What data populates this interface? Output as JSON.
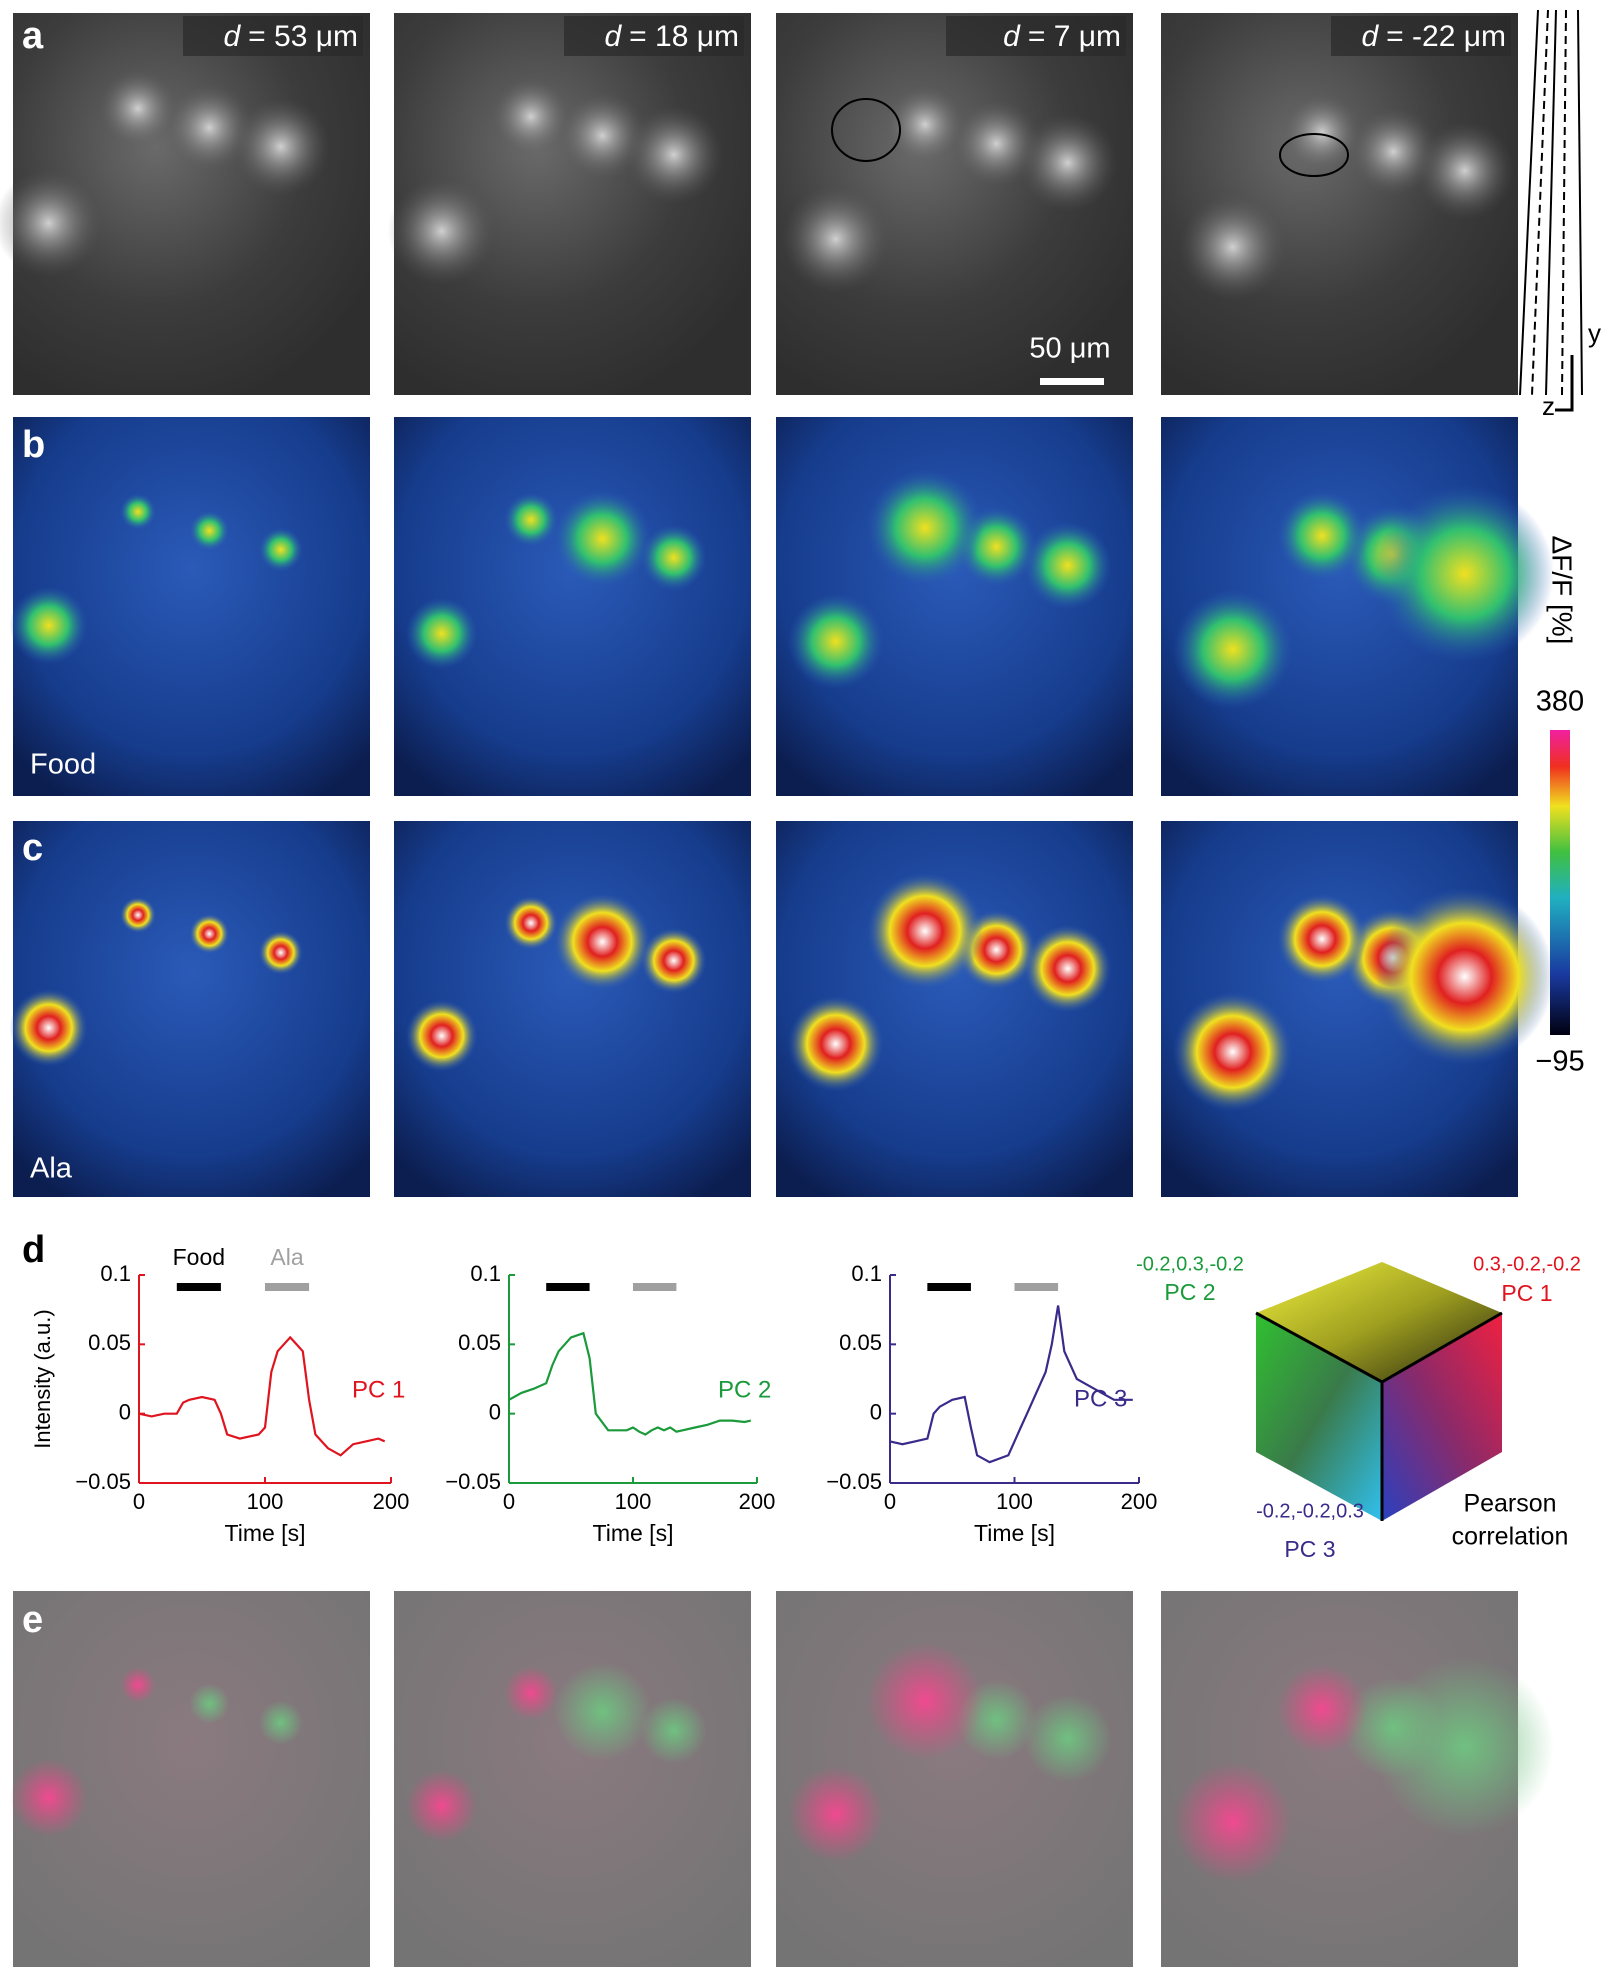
{
  "panel_letters": [
    "a",
    "b",
    "c",
    "d",
    "e"
  ],
  "depth_labels": [
    {
      "symbol": "d",
      "text": "= 53 μm"
    },
    {
      "symbol": "d",
      "text": "= 18 μm"
    },
    {
      "symbol": "d",
      "text": "= 7 μm"
    },
    {
      "symbol": "d",
      "text": "= -22 μm"
    }
  ],
  "scale_bar": "50 μm",
  "stack_axes": {
    "y": "y",
    "z": "z"
  },
  "row_labels": {
    "b": "Food",
    "c": "Ala"
  },
  "colorbar": {
    "label": "ΔF/F [%]",
    "max": 380,
    "min": {
      "value": -95,
      "label": "−95"
    }
  },
  "chart_data": [
    {
      "type": "line",
      "ylabel": "Intensity (a.u.)",
      "xlabel": "Time [s]",
      "xlim": [
        0,
        200
      ],
      "xticks": [
        0,
        100,
        200
      ],
      "ylim": [
        -0.05,
        0.1
      ],
      "yticks": [
        {
          "value": -0.05,
          "label": "−0.05"
        },
        0,
        0.05,
        0.1
      ],
      "stimuli": [
        {
          "label": "Food",
          "start": 30,
          "end": 65,
          "color": "#000000"
        },
        {
          "label": "Ala",
          "start": 100,
          "end": 135,
          "color": "#a0a0a0"
        }
      ],
      "x": [
        0,
        10,
        20,
        30,
        35,
        40,
        50,
        60,
        65,
        70,
        80,
        95,
        100,
        105,
        110,
        115,
        120,
        125,
        130,
        135,
        140,
        150,
        160,
        170,
        180,
        190,
        195
      ],
      "series": [
        {
          "name": "PC 1",
          "color": "#e0141e",
          "values": [
            0,
            -0.002,
            0,
            0,
            0.008,
            0.01,
            0.012,
            0.01,
            0,
            -0.015,
            -0.018,
            -0.015,
            -0.01,
            0.03,
            0.045,
            0.05,
            0.055,
            0.05,
            0.045,
            0.01,
            -0.015,
            -0.025,
            -0.03,
            -0.022,
            -0.02,
            -0.018,
            -0.02
          ]
        }
      ]
    },
    {
      "type": "line",
      "xlabel": "Time [s]",
      "xlim": [
        0,
        200
      ],
      "xticks": [
        0,
        100,
        200
      ],
      "ylim": [
        -0.05,
        0.1
      ],
      "yticks": [
        {
          "value": -0.05,
          "label": "−0.05"
        },
        0,
        0.05,
        0.1
      ],
      "stimuli": [
        {
          "start": 30,
          "end": 65,
          "color": "#000000"
        },
        {
          "start": 100,
          "end": 135,
          "color": "#a0a0a0"
        }
      ],
      "x": [
        0,
        10,
        20,
        30,
        35,
        40,
        50,
        60,
        65,
        70,
        80,
        95,
        100,
        105,
        110,
        115,
        120,
        125,
        130,
        135,
        140,
        150,
        160,
        170,
        180,
        190,
        195
      ],
      "series": [
        {
          "name": "PC 2",
          "color": "#1a9a3a",
          "values": [
            0.01,
            0.015,
            0.018,
            0.022,
            0.035,
            0.045,
            0.055,
            0.058,
            0.04,
            0,
            -0.012,
            -0.012,
            -0.01,
            -0.013,
            -0.015,
            -0.012,
            -0.01,
            -0.012,
            -0.01,
            -0.013,
            -0.012,
            -0.01,
            -0.008,
            -0.005,
            -0.005,
            -0.006,
            -0.005
          ]
        }
      ]
    },
    {
      "type": "line",
      "xlabel": "Time [s]",
      "xlim": [
        0,
        200
      ],
      "xticks": [
        0,
        100,
        200
      ],
      "ylim": [
        -0.05,
        0.1
      ],
      "yticks": [
        {
          "value": -0.05,
          "label": "−0.05"
        },
        0,
        0.05,
        0.1
      ],
      "stimuli": [
        {
          "start": 30,
          "end": 65,
          "color": "#000000"
        },
        {
          "start": 100,
          "end": 135,
          "color": "#a0a0a0"
        }
      ],
      "x": [
        0,
        10,
        20,
        30,
        35,
        40,
        50,
        60,
        65,
        70,
        80,
        95,
        100,
        105,
        110,
        115,
        120,
        125,
        130,
        135,
        140,
        150,
        160,
        170,
        180,
        190,
        195
      ],
      "series": [
        {
          "name": "PC 3",
          "color": "#3a2a8a",
          "values": [
            -0.02,
            -0.022,
            -0.02,
            -0.018,
            0,
            0.005,
            0.01,
            0.012,
            -0.01,
            -0.03,
            -0.035,
            -0.03,
            -0.02,
            -0.01,
            0,
            0.01,
            0.02,
            0.03,
            0.05,
            0.078,
            0.045,
            0.025,
            0.02,
            0.015,
            0.01,
            0.01,
            0.01
          ]
        }
      ]
    }
  ],
  "cube_legend": {
    "corners": [
      {
        "coords": "-0.2,0.3,-0.2",
        "name": "PC 2",
        "color": "#1a9a3a"
      },
      {
        "coords": "0.3,-0.2,-0.2",
        "name": "PC 1",
        "color": "#e0141e"
      },
      {
        "coords": "-0.2,-0.2,0.3",
        "name": "PC 3",
        "color": "#3a2a8a"
      }
    ],
    "caption": [
      "Pearson",
      "correlation"
    ]
  }
}
